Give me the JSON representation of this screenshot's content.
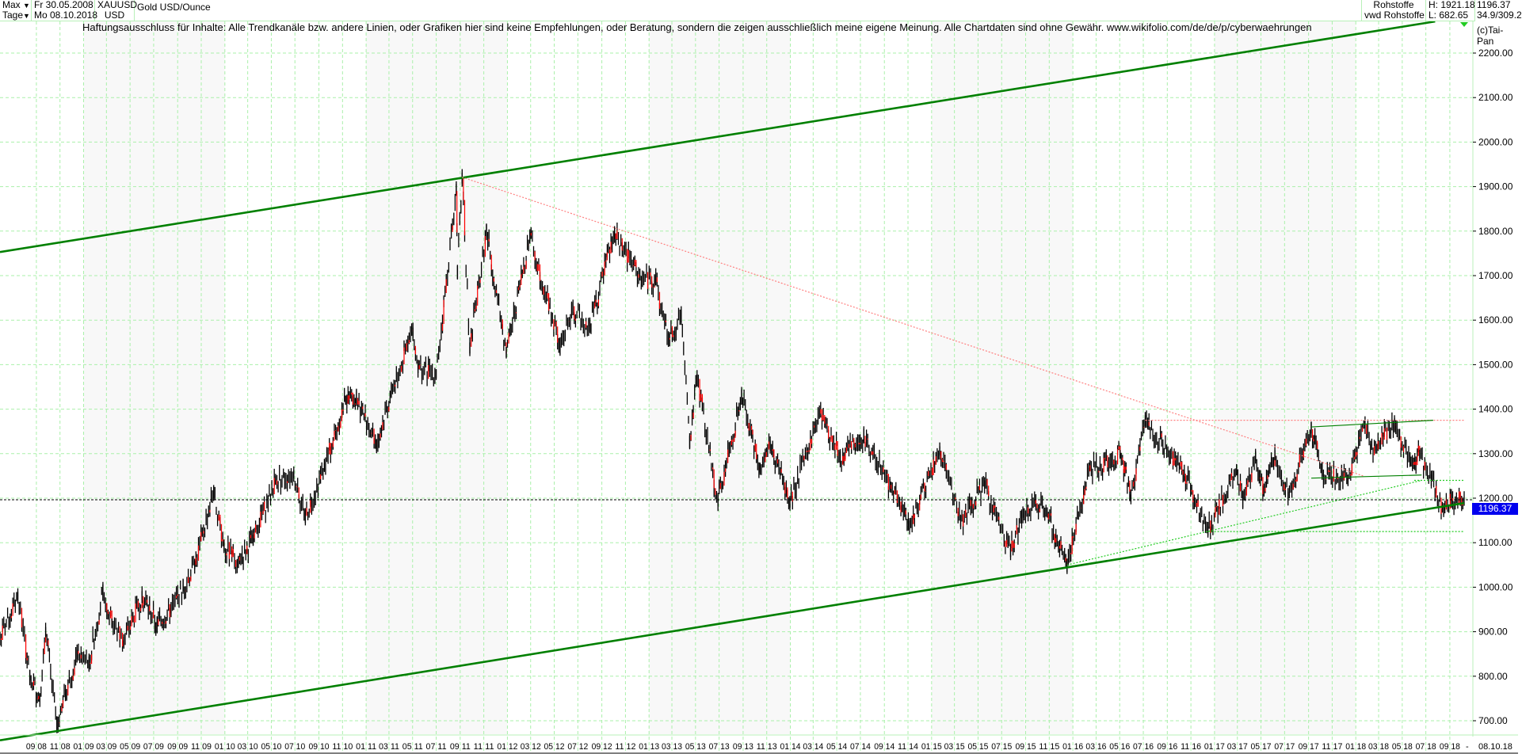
{
  "header": {
    "range_label": "Max",
    "interval_label": "Tage",
    "start_date": "Fr 30.05.2008",
    "end_date": "Mo 08.10.2018",
    "symbol": "XAUUSD",
    "currency": "USD",
    "instrument": "Gold USD/Ounce",
    "category": "Rohstoffe",
    "source": "vwd Rohstoffe",
    "high": "H: 1921.18",
    "low": "L: 682.65",
    "last": "1196.37",
    "ratio": "34.9/309.2",
    "copyright": "(c)Tai-Pan",
    "dropdown_icon": "caret-down-icon"
  },
  "disclaimer": "Haftungsausschluss für Inhalte: Alle Trendkanäle bzw. andere Linien, oder Grafiken hier sind keine Empfehlungen, oder Beratung, sondern die zeigen ausschließlich meine eigene Meinung. Alle Chartdaten sind ohne Gewähr.  www.wikifolio.com/de/de/p/cyberwaehrungen",
  "colors": {
    "channel": "#008000",
    "price_up": "#000000",
    "price_down": "#ff0000",
    "grid": "#aaf0aa",
    "last_price_tag": "#0000ee",
    "resistance": "#ff8080",
    "support_thin": "#22cc22"
  },
  "chart_data": {
    "type": "line",
    "style": "ohlc-bars",
    "x_start": "2008-05-30",
    "x_end": "2018-10-08",
    "ylim": [
      700,
      2200
    ],
    "yticks": [
      "700.00",
      "800.00",
      "900.00",
      "1000.00",
      "1100.00",
      "1200.00",
      "1300.00",
      "1400.00",
      "1500.00",
      "1600.00",
      "1700.00",
      "1800.00",
      "1900.00",
      "2000.00",
      "2100.00",
      "2200.00"
    ],
    "xticks": [
      "09 08",
      "11 08",
      "01 09",
      "03 09",
      "05 09",
      "07 09",
      "09 09",
      "11 09",
      "01 10",
      "03 10",
      "05 10",
      "07 10",
      "09 10",
      "11 10",
      "01 11",
      "03 11",
      "05 11",
      "07 11",
      "09 11",
      "11 11",
      "01 12",
      "03 12",
      "05 12",
      "07 12",
      "09 12",
      "11 12",
      "01 13",
      "03 13",
      "05 13",
      "07 13",
      "09 13",
      "11 13",
      "01 14",
      "03 14",
      "05 14",
      "07 14",
      "09 14",
      "11 14",
      "01 15",
      "03 15",
      "05 15",
      "07 15",
      "09 15",
      "11 15",
      "01 16",
      "03 16",
      "05 16",
      "07 16",
      "09 16",
      "11 16",
      "01 17",
      "03 17",
      "05 17",
      "07 17",
      "09 17",
      "11 17",
      "01 18",
      "03 18",
      "05 18",
      "07 18",
      "09 18"
    ],
    "x_end_label": "-",
    "x_last_label": "08.10.18",
    "grid": true,
    "last_price": 1196.37,
    "series": [
      {
        "points": [
          [
            "2008-05-30",
            885
          ],
          [
            "2008-07-15",
            980
          ],
          [
            "2008-08-15",
            800
          ],
          [
            "2008-09-10",
            750
          ],
          [
            "2008-09-25",
            900
          ],
          [
            "2008-10-24",
            690
          ],
          [
            "2008-11-15",
            760
          ],
          [
            "2008-12-15",
            850
          ],
          [
            "2009-01-15",
            830
          ],
          [
            "2009-02-20",
            990
          ],
          [
            "2009-03-15",
            920
          ],
          [
            "2009-04-15",
            880
          ],
          [
            "2009-06-01",
            980
          ],
          [
            "2009-07-10",
            915
          ],
          [
            "2009-08-15",
            950
          ],
          [
            "2009-09-15",
            1000
          ],
          [
            "2009-10-15",
            1050
          ],
          [
            "2009-12-03",
            1215
          ],
          [
            "2009-12-30",
            1090
          ],
          [
            "2010-02-05",
            1060
          ],
          [
            "2010-03-15",
            1110
          ],
          [
            "2010-05-12",
            1240
          ],
          [
            "2010-06-28",
            1255
          ],
          [
            "2010-07-28",
            1160
          ],
          [
            "2010-09-15",
            1270
          ],
          [
            "2010-11-09",
            1420
          ],
          [
            "2010-12-07",
            1425
          ],
          [
            "2011-01-28",
            1320
          ],
          [
            "2011-03-07",
            1440
          ],
          [
            "2011-05-02",
            1575
          ],
          [
            "2011-05-15",
            1490
          ],
          [
            "2011-07-01",
            1480
          ],
          [
            "2011-08-22",
            1890
          ],
          [
            "2011-08-25",
            1710
          ],
          [
            "2011-09-06",
            1921
          ],
          [
            "2011-09-26",
            1540
          ],
          [
            "2011-11-08",
            1800
          ],
          [
            "2011-12-29",
            1525
          ],
          [
            "2012-02-28",
            1790
          ],
          [
            "2012-05-16",
            1540
          ],
          [
            "2012-06-15",
            1620
          ],
          [
            "2012-08-01",
            1590
          ],
          [
            "2012-10-04",
            1795
          ],
          [
            "2012-12-15",
            1690
          ],
          [
            "2013-01-15",
            1690
          ],
          [
            "2013-02-20",
            1560
          ],
          [
            "2013-03-25",
            1610
          ],
          [
            "2013-04-16",
            1330
          ],
          [
            "2013-05-05",
            1470
          ],
          [
            "2013-06-28",
            1190
          ],
          [
            "2013-08-28",
            1430
          ],
          [
            "2013-10-15",
            1270
          ],
          [
            "2013-11-10",
            1320
          ],
          [
            "2013-12-31",
            1190
          ],
          [
            "2014-03-17",
            1390
          ],
          [
            "2014-05-10",
            1290
          ],
          [
            "2014-07-10",
            1340
          ],
          [
            "2014-09-15",
            1230
          ],
          [
            "2014-11-05",
            1140
          ],
          [
            "2015-01-22",
            1305
          ],
          [
            "2015-03-17",
            1145
          ],
          [
            "2015-05-18",
            1230
          ],
          [
            "2015-07-24",
            1080
          ],
          [
            "2015-08-25",
            1165
          ],
          [
            "2015-10-14",
            1190
          ],
          [
            "2015-12-17",
            1050
          ],
          [
            "2016-02-11",
            1260
          ],
          [
            "2016-05-02",
            1300
          ],
          [
            "2016-05-30",
            1200
          ],
          [
            "2016-07-06",
            1375
          ],
          [
            "2016-10-15",
            1255
          ],
          [
            "2016-12-15",
            1125
          ],
          [
            "2017-02-27",
            1260
          ],
          [
            "2017-03-15",
            1195
          ],
          [
            "2017-04-17",
            1295
          ],
          [
            "2017-05-09",
            1215
          ],
          [
            "2017-06-06",
            1300
          ],
          [
            "2017-07-10",
            1205
          ],
          [
            "2017-09-08",
            1355
          ],
          [
            "2017-10-06",
            1260
          ],
          [
            "2017-12-12",
            1240
          ],
          [
            "2018-01-25",
            1365
          ],
          [
            "2018-02-08",
            1310
          ],
          [
            "2018-04-11",
            1365
          ],
          [
            "2018-05-21",
            1285
          ],
          [
            "2018-06-15",
            1300
          ],
          [
            "2018-07-15",
            1240
          ],
          [
            "2018-08-16",
            1170
          ],
          [
            "2018-09-05",
            1200
          ],
          [
            "2018-10-08",
            1196.37
          ]
        ]
      }
    ],
    "annotations": [
      {
        "name": "upper-channel-line",
        "kind": "solid-thick",
        "color": "#008000",
        "from": [
          "2008-05-30",
          1753
        ],
        "to": [
          "2018-07-25",
          2271
        ]
      },
      {
        "name": "lower-channel-line",
        "kind": "solid-thick",
        "color": "#008000",
        "from": [
          "2008-05-30",
          656
        ],
        "to": [
          "2018-10-08",
          1189
        ]
      },
      {
        "name": "resistance-downtrend-line",
        "kind": "dotted",
        "color": "#ff8080",
        "from": [
          "2011-09-06",
          1921
        ],
        "to": [
          "2018-01-20",
          1250
        ]
      },
      {
        "name": "resistance-horizontal-line",
        "kind": "dotted",
        "color": "#ff8080",
        "from": [
          "2016-07-06",
          1375
        ],
        "to": [
          "2018-10-08",
          1375
        ]
      },
      {
        "name": "triangle-upper-line",
        "kind": "solid-thin",
        "color": "#008000",
        "from": [
          "2017-09-08",
          1360
        ],
        "to": [
          "2018-07-20",
          1375
        ]
      },
      {
        "name": "triangle-lower-line",
        "kind": "solid-thin",
        "color": "#008000",
        "from": [
          "2017-09-08",
          1245
        ],
        "to": [
          "2018-06-20",
          1252
        ]
      },
      {
        "name": "support-uptrend-line",
        "kind": "dotted",
        "color": "#22cc22",
        "from": [
          "2015-12-17",
          1050
        ],
        "to": [
          "2018-06-20",
          1240
        ]
      },
      {
        "name": "support-horizontal-1240",
        "kind": "dotted",
        "color": "#22cc22",
        "from": [
          "2018-06-01",
          1240
        ],
        "to": [
          "2018-10-08",
          1240
        ]
      },
      {
        "name": "support-horizontal-1125",
        "kind": "dotted",
        "color": "#22cc22",
        "from": [
          "2016-12-15",
          1125
        ],
        "to": [
          "2018-10-08",
          1125
        ]
      }
    ]
  }
}
